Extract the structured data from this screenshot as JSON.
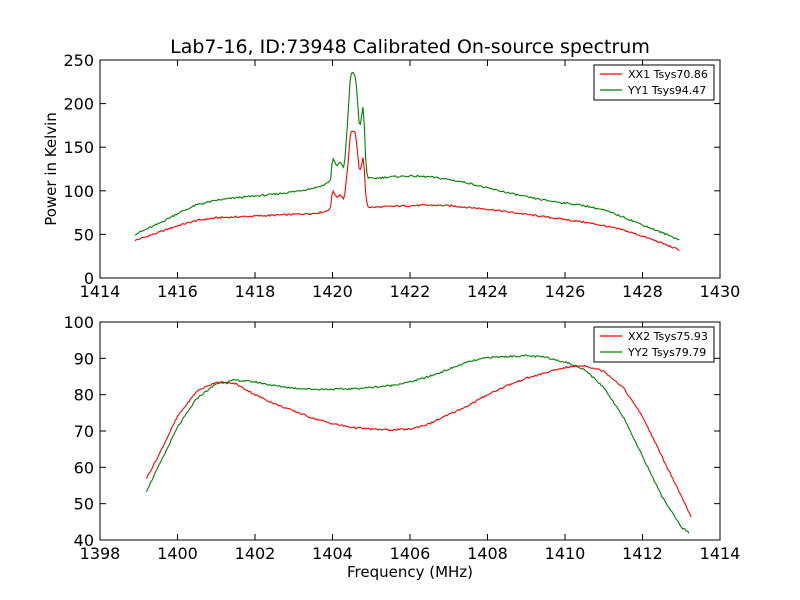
{
  "title": "Lab7-16, ID:73948 Calibrated On-source spectrum",
  "chart_data": [
    {
      "type": "line",
      "ylabel": "Power in Kelvin",
      "xlabel": "",
      "xlim": [
        1414,
        1430
      ],
      "ylim": [
        0,
        250
      ],
      "xticks": [
        "1414",
        "1416",
        "1418",
        "1420",
        "1422",
        "1424",
        "1426",
        "1428",
        "1430"
      ],
      "yticks": [
        "0",
        "50",
        "100",
        "150",
        "200",
        "250"
      ],
      "grid": false,
      "legend": "top-right",
      "series": [
        {
          "name": "XX1 Tsys70.86",
          "color": "#ff0000",
          "x": [
            1414.9,
            1415.5,
            1416,
            1416.5,
            1417,
            1417.5,
            1418,
            1418.5,
            1419,
            1419.5,
            1419.8,
            1419.95,
            1420.0,
            1420.1,
            1420.2,
            1420.3,
            1420.4,
            1420.45,
            1420.5,
            1420.6,
            1420.7,
            1420.8,
            1420.85,
            1420.9,
            1421.0,
            1421.5,
            1422,
            1422.5,
            1423,
            1423.5,
            1424,
            1424.5,
            1425,
            1425.5,
            1426,
            1426.5,
            1427,
            1427.5,
            1428,
            1428.5,
            1428.95
          ],
          "values": [
            43,
            52,
            60,
            66,
            69,
            70,
            71,
            72,
            73,
            74,
            76,
            80,
            102,
            92,
            96,
            90,
            130,
            160,
            170,
            165,
            120,
            140,
            100,
            82,
            81,
            82,
            83,
            83.5,
            83,
            81,
            79,
            76,
            73,
            70,
            67,
            64,
            60,
            55,
            48,
            40,
            32
          ]
        },
        {
          "name": "YY1 Tsys94.47",
          "color": "#008000",
          "x": [
            1414.9,
            1415.5,
            1416,
            1416.5,
            1417,
            1417.5,
            1418,
            1418.5,
            1419,
            1419.5,
            1419.8,
            1419.95,
            1420.0,
            1420.1,
            1420.2,
            1420.3,
            1420.4,
            1420.45,
            1420.5,
            1420.6,
            1420.7,
            1420.8,
            1420.85,
            1420.9,
            1421.0,
            1421.5,
            1422,
            1422.5,
            1423,
            1423.5,
            1424,
            1424.5,
            1425,
            1425.5,
            1426,
            1426.5,
            1427,
            1427.5,
            1428,
            1428.5,
            1428.95
          ],
          "values": [
            50,
            62,
            74,
            84,
            89,
            92,
            94,
            96,
            99,
            103,
            107,
            112,
            139,
            128,
            133,
            125,
            185,
            225,
            238,
            230,
            170,
            200,
            140,
            115,
            114,
            116,
            117,
            116,
            113,
            109,
            103,
            98,
            93,
            89,
            86,
            83,
            78,
            70,
            61,
            52,
            44
          ]
        }
      ]
    },
    {
      "type": "line",
      "ylabel": "",
      "xlabel": "Frequency (MHz)",
      "xlim": [
        1398,
        1414
      ],
      "ylim": [
        40,
        100
      ],
      "xticks": [
        "1398",
        "1400",
        "1402",
        "1404",
        "1406",
        "1408",
        "1410",
        "1412",
        "1414"
      ],
      "yticks": [
        "40",
        "50",
        "60",
        "70",
        "80",
        "90",
        "100"
      ],
      "grid": false,
      "legend": "top-right",
      "series": [
        {
          "name": "XX2 Tsys75.93",
          "color": "#ff0000",
          "x": [
            1399.2,
            1399.5,
            1400,
            1400.5,
            1401,
            1401.5,
            1402,
            1402.5,
            1403,
            1403.5,
            1404,
            1404.5,
            1405,
            1405.5,
            1406,
            1406.5,
            1407,
            1407.5,
            1408,
            1408.5,
            1409,
            1409.5,
            1410,
            1410.5,
            1411,
            1411.5,
            1412,
            1412.5,
            1413,
            1413.25
          ],
          "values": [
            57,
            63,
            74,
            81,
            83.5,
            83,
            80,
            77.5,
            75.5,
            73.5,
            72,
            71,
            70.5,
            70.3,
            70.5,
            72,
            74.5,
            77,
            80,
            82.5,
            84.5,
            86,
            87.5,
            88,
            86.5,
            82,
            74,
            63,
            52,
            46.5
          ]
        },
        {
          "name": "YY2 Tsys79.79",
          "color": "#008000",
          "x": [
            1399.2,
            1399.5,
            1400,
            1400.5,
            1401,
            1401.5,
            1402,
            1402.5,
            1403,
            1403.5,
            1404,
            1404.5,
            1405,
            1405.5,
            1406,
            1406.5,
            1407,
            1407.5,
            1408,
            1408.5,
            1409,
            1409.5,
            1410,
            1410.5,
            1411,
            1411.5,
            1412,
            1412.5,
            1413,
            1413.2
          ],
          "values": [
            53.5,
            60,
            71,
            79,
            83,
            84,
            83.5,
            82.5,
            81.8,
            81.5,
            81.5,
            81.6,
            82,
            82.5,
            83.5,
            85,
            87,
            89,
            90.2,
            90.5,
            90.7,
            90.3,
            89,
            87,
            82,
            74,
            63,
            52,
            43.5,
            42
          ]
        }
      ]
    }
  ]
}
